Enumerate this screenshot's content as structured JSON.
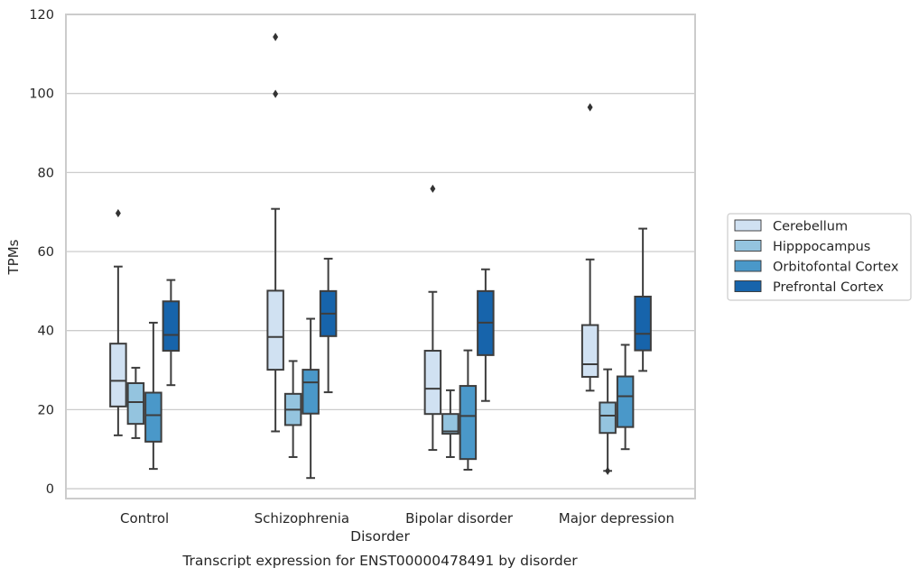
{
  "chart_data": {
    "type": "box",
    "title": "Transcript expression for ENST00000478491 by disorder",
    "xlabel": "Disorder",
    "ylabel": "TPMs",
    "ylim": [
      -2.5,
      120
    ],
    "yticks": [
      0,
      20,
      40,
      60,
      80,
      100,
      120
    ],
    "grid": "horizontal",
    "legend_position": "right",
    "categories": [
      "Control",
      "Schizophrenia",
      "Bipolar disorder",
      "Major depression"
    ],
    "series": [
      {
        "name": "Cerebellum",
        "color": "#d0e1f2",
        "boxes": [
          {
            "whisker_low": 13.5,
            "q1": 20.8,
            "median": 27.3,
            "q3": 36.7,
            "whisker_high": 56.2,
            "outliers": [
              69.7
            ]
          },
          {
            "whisker_low": 14.5,
            "q1": 30.1,
            "median": 38.4,
            "q3": 50.1,
            "whisker_high": 70.8,
            "outliers": [
              99.9,
              114.3
            ]
          },
          {
            "whisker_low": 9.8,
            "q1": 18.9,
            "median": 25.3,
            "q3": 34.9,
            "whisker_high": 49.8,
            "outliers": [
              75.9
            ]
          },
          {
            "whisker_low": 24.8,
            "q1": 28.3,
            "median": 31.5,
            "q3": 41.4,
            "whisker_high": 58.0,
            "outliers": [
              96.5
            ]
          }
        ]
      },
      {
        "name": "Hipppocampus",
        "color": "#94c4df",
        "boxes": [
          {
            "whisker_low": 12.8,
            "q1": 16.4,
            "median": 21.9,
            "q3": 26.7,
            "whisker_high": 30.6,
            "outliers": []
          },
          {
            "whisker_low": 8.0,
            "q1": 16.1,
            "median": 20.0,
            "q3": 24.0,
            "whisker_high": 32.3,
            "outliers": []
          },
          {
            "whisker_low": 8.0,
            "q1": 13.9,
            "median": 14.5,
            "q3": 18.9,
            "whisker_high": 24.9,
            "outliers": []
          },
          {
            "whisker_low": 4.5,
            "q1": 14.1,
            "median": 18.5,
            "q3": 21.8,
            "whisker_high": 30.2,
            "outliers": [
              4.5
            ]
          }
        ]
      },
      {
        "name": "Orbitofontal Cortex",
        "color": "#4a98c9",
        "boxes": [
          {
            "whisker_low": 5.0,
            "q1": 11.9,
            "median": 18.6,
            "q3": 24.3,
            "whisker_high": 42.0,
            "outliers": []
          },
          {
            "whisker_low": 2.7,
            "q1": 19.0,
            "median": 26.9,
            "q3": 30.1,
            "whisker_high": 43.0,
            "outliers": []
          },
          {
            "whisker_low": 4.8,
            "q1": 7.5,
            "median": 18.4,
            "q3": 26.0,
            "whisker_high": 35.0,
            "outliers": []
          },
          {
            "whisker_low": 10.0,
            "q1": 15.6,
            "median": 23.4,
            "q3": 28.4,
            "whisker_high": 36.4,
            "outliers": []
          }
        ]
      },
      {
        "name": "Prefrontal Cortex",
        "color": "#1764ab",
        "boxes": [
          {
            "whisker_low": 26.2,
            "q1": 34.9,
            "median": 38.9,
            "q3": 47.4,
            "whisker_high": 52.8,
            "outliers": []
          },
          {
            "whisker_low": 24.4,
            "q1": 38.6,
            "median": 44.3,
            "q3": 50.0,
            "whisker_high": 58.2,
            "outliers": []
          },
          {
            "whisker_low": 22.2,
            "q1": 33.8,
            "median": 42.0,
            "q3": 50.0,
            "whisker_high": 55.5,
            "outliers": []
          },
          {
            "whisker_low": 29.8,
            "q1": 35.0,
            "median": 39.2,
            "q3": 48.6,
            "whisker_high": 65.8,
            "outliers": []
          }
        ]
      }
    ]
  }
}
